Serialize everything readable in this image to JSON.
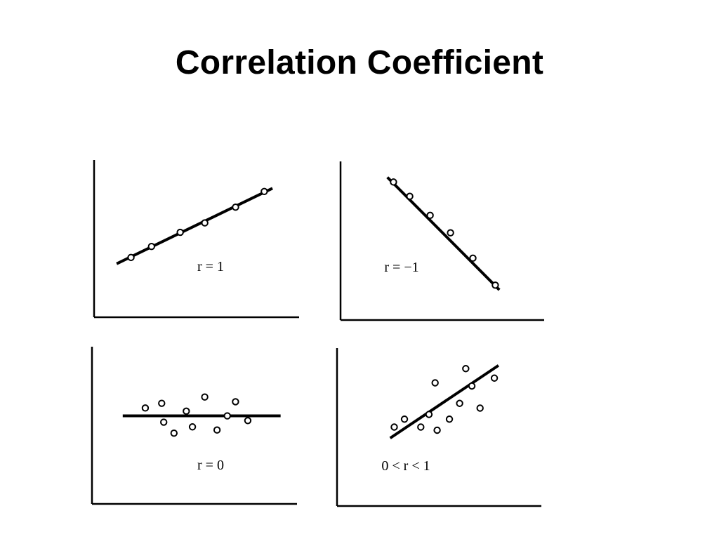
{
  "slide": {
    "title": "Correlation Coefficient"
  },
  "chart_data": [
    {
      "type": "scatter",
      "label": "r = 1",
      "xlim": [
        0,
        10
      ],
      "ylim": [
        0,
        10
      ],
      "points": [
        [
          1.8,
          3.8
        ],
        [
          2.8,
          4.5
        ],
        [
          4.2,
          5.4
        ],
        [
          5.4,
          6.0
        ],
        [
          6.9,
          7.0
        ],
        [
          8.3,
          8.0
        ]
      ],
      "fit": {
        "x": [
          1.1,
          8.7
        ],
        "y": [
          3.4,
          8.2
        ]
      }
    },
    {
      "type": "scatter",
      "label": "r = −1",
      "xlim": [
        0,
        10
      ],
      "ylim": [
        0,
        10
      ],
      "points": [
        [
          2.6,
          8.7
        ],
        [
          3.4,
          7.8
        ],
        [
          4.4,
          6.6
        ],
        [
          5.4,
          5.5
        ],
        [
          6.5,
          3.9
        ],
        [
          7.6,
          2.2
        ]
      ],
      "fit": {
        "x": [
          2.3,
          7.8
        ],
        "y": [
          9.0,
          1.9
        ]
      }
    },
    {
      "type": "scatter",
      "label": "r = 0",
      "xlim": [
        0,
        10
      ],
      "ylim": [
        0,
        10
      ],
      "points": [
        [
          2.6,
          6.1
        ],
        [
          3.4,
          6.4
        ],
        [
          3.5,
          5.2
        ],
        [
          4.0,
          4.5
        ],
        [
          4.6,
          5.9
        ],
        [
          4.9,
          4.9
        ],
        [
          5.5,
          6.8
        ],
        [
          6.1,
          4.7
        ],
        [
          6.6,
          5.6
        ],
        [
          7.0,
          6.5
        ],
        [
          7.6,
          5.3
        ]
      ],
      "fit": {
        "x": [
          1.5,
          9.2
        ],
        "y": [
          5.6,
          5.6
        ]
      }
    },
    {
      "type": "scatter",
      "label": "0 < r < 1",
      "xlim": [
        0,
        10
      ],
      "ylim": [
        0,
        10
      ],
      "points": [
        [
          2.8,
          5.0
        ],
        [
          3.3,
          5.5
        ],
        [
          4.1,
          5.0
        ],
        [
          4.5,
          5.8
        ],
        [
          4.8,
          7.8
        ],
        [
          4.9,
          4.8
        ],
        [
          5.5,
          5.5
        ],
        [
          6.0,
          6.5
        ],
        [
          6.3,
          8.7
        ],
        [
          6.6,
          7.6
        ],
        [
          7.0,
          6.2
        ],
        [
          7.7,
          8.1
        ]
      ],
      "fit": {
        "x": [
          2.6,
          7.9
        ],
        "y": [
          4.3,
          8.9
        ]
      }
    }
  ]
}
